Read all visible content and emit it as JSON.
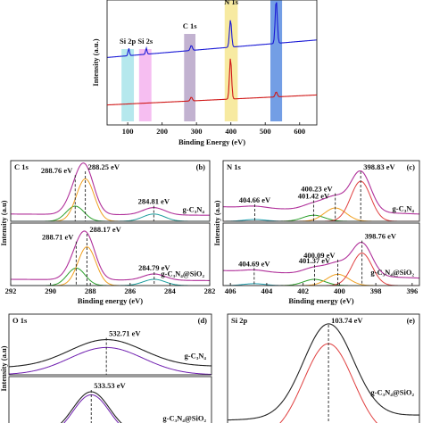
{
  "chart_data": [
    {
      "type": "xps",
      "xlabel": "Binding Energy (eV)",
      "ylabel": "Intensity (a.u.)",
      "xlim": [
        40,
        650
      ],
      "xticks": [
        100,
        200,
        300,
        400,
        500,
        600
      ],
      "ylim": [
        0,
        100
      ],
      "bands": [
        {
          "label": "Si 2p",
          "color": "#a8e4ea",
          "range": [
            82,
            118
          ]
        },
        {
          "label": "Si 2s",
          "color": "#f5b3ef",
          "range": [
            133,
            169
          ]
        },
        {
          "label": "C 1s",
          "color": "#b7a5c8",
          "range": [
            264,
            297
          ]
        },
        {
          "label": "N 1s",
          "color": "#f6e690",
          "range": [
            382,
            420
          ]
        },
        {
          "color": "#5a8de0",
          "range": [
            515,
            549
          ]
        }
      ],
      "subplots": [
        {
          "color": "#1a1ad6",
          "baseline": [
            54,
            68
          ],
          "peaks": [
            {
              "center": 103,
              "height": 6,
              "width": 2
            },
            {
              "center": 154,
              "height": 5,
              "width": 2
            },
            {
              "center": 285,
              "height": 4,
              "width": 3
            },
            {
              "center": 399,
              "height": 22,
              "width": 3
            },
            {
              "center": 532,
              "height": 35,
              "width": 3
            }
          ]
        },
        {
          "color": "#d01818",
          "baseline": [
            16,
            24
          ],
          "peaks": [
            {
              "center": 285,
              "height": 3,
              "width": 3
            },
            {
              "center": 399,
              "height": 33,
              "width": 3
            },
            {
              "center": 532,
              "height": 4,
              "width": 3
            }
          ]
        }
      ]
    },
    {
      "type": "xps",
      "title": "C 1s",
      "panel": "(b)",
      "xlabel": "Binding energy (eV)",
      "ylabel": "Intensity (a.u)",
      "xlim": [
        292,
        282
      ],
      "xticks": [
        292,
        290,
        288,
        286,
        284,
        282
      ],
      "ylim": [
        0,
        100
      ],
      "subplots": [
        {
          "name": "g-C₃N₄",
          "color": "#e02020",
          "envelope_color": "#b0309a",
          "baseline": [
            12,
            10
          ],
          "peaks": [
            {
              "label": "288.76 eV",
              "center": 288.76,
              "height": 25,
              "width": 0.45,
              "color": "#2ca02c"
            },
            {
              "label": "288.25 eV",
              "center": 288.25,
              "height": 70,
              "width": 0.45,
              "color": "#f0a020"
            },
            {
              "label": "284.81 eV",
              "center": 284.81,
              "height": 12,
              "width": 0.55,
              "color": "#1f9e9e"
            }
          ]
        },
        {
          "name": "g-C₃N₄@SiO₂",
          "color": "#2020d0",
          "envelope_color": "#b0309a",
          "baseline": [
            10,
            8
          ],
          "peaks": [
            {
              "label": "288.71 eV",
              "center": 288.71,
              "height": 28,
              "width": 0.45,
              "color": "#2ca02c"
            },
            {
              "label": "288.17 eV",
              "center": 288.17,
              "height": 62,
              "width": 0.45,
              "color": "#f0a020"
            },
            {
              "label": "284.79 eV",
              "center": 284.79,
              "height": 10,
              "width": 0.55,
              "color": "#1f9e9e"
            }
          ]
        }
      ]
    },
    {
      "type": "xps",
      "title": "N 1s",
      "panel": "(c)",
      "xlabel": "Binding energy (eV)",
      "ylabel": "Intensity (a.u)",
      "xlim": [
        406.4,
        395.6
      ],
      "xticks": [
        406,
        404,
        402,
        400,
        398,
        396
      ],
      "ylim": [
        0,
        100
      ],
      "subplots": [
        {
          "name": "g-C₃N₄",
          "color": "#e02020",
          "envelope_color": "#b0309a",
          "baseline": [
            24,
            12
          ],
          "peaks": [
            {
              "label": "404.66 eV",
              "center": 404.66,
              "height": 3,
              "width": 0.6,
              "color": "#1fa0b0"
            },
            {
              "label": "401.42 eV",
              "center": 401.42,
              "height": 10,
              "width": 0.6,
              "color": "#2ca02c"
            },
            {
              "label": "400.23 eV",
              "center": 400.23,
              "height": 22,
              "width": 0.6,
              "color": "#f0a020"
            },
            {
              "label": "398.83 eV",
              "center": 398.83,
              "height": 66,
              "width": 0.55,
              "color": "#e04040"
            }
          ]
        },
        {
          "name": "g-C₃N₄@SiO₂",
          "color": "#2020d0",
          "envelope_color": "#b0309a",
          "baseline": [
            24,
            12
          ],
          "peaks": [
            {
              "label": "404.69 eV",
              "center": 404.69,
              "height": 3,
              "width": 0.6,
              "color": "#1fa0b0"
            },
            {
              "label": "401.37 eV",
              "center": 401.37,
              "height": 10,
              "width": 0.6,
              "color": "#2ca02c"
            },
            {
              "label": "400.09 eV",
              "center": 400.09,
              "height": 18,
              "width": 0.6,
              "color": "#f0a020"
            },
            {
              "label": "398.76 eV",
              "center": 398.76,
              "height": 52,
              "width": 0.55,
              "color": "#e04040"
            }
          ]
        }
      ]
    },
    {
      "type": "xps",
      "title": "O 1s",
      "panel": "(d)",
      "ylabel": "Intensity (a.u)",
      "xlim": [
        538,
        527
      ],
      "ylim": [
        0,
        100
      ],
      "subplots": [
        {
          "name": "g-C₃N₄",
          "color": "#e02020",
          "envelope_color": "#222222",
          "baseline": [
            12,
            14
          ],
          "peaks": [
            {
              "label": "532.71 eV",
              "center": 532.71,
              "height": 45,
              "width": 2.0,
              "color": "#7020b0"
            }
          ]
        },
        {
          "name": "g-C₃N₄@SiO₂",
          "color": "#2020d0",
          "envelope_color": "#222222",
          "baseline": [
            5,
            5
          ],
          "peaks": [
            {
              "label": "533.53 eV",
              "center": 533.53,
              "height": 70,
              "width": 1.0,
              "color": "#7020b0"
            }
          ]
        }
      ]
    },
    {
      "type": "xps",
      "title": "Si 2p",
      "panel": "(e)",
      "xlim": [
        109,
        99
      ],
      "ylim": [
        0,
        100
      ],
      "subplots": [
        {
          "name": "g-C₃N₄@SiO₂",
          "color": "#2020d0",
          "envelope_color": "#222222",
          "baseline": [
            14,
            18
          ],
          "peaks": [
            {
              "label": "103.74 eV",
              "center": 103.74,
              "height": 76,
              "width": 1.3,
              "color": "#e04040"
            }
          ]
        }
      ]
    }
  ]
}
